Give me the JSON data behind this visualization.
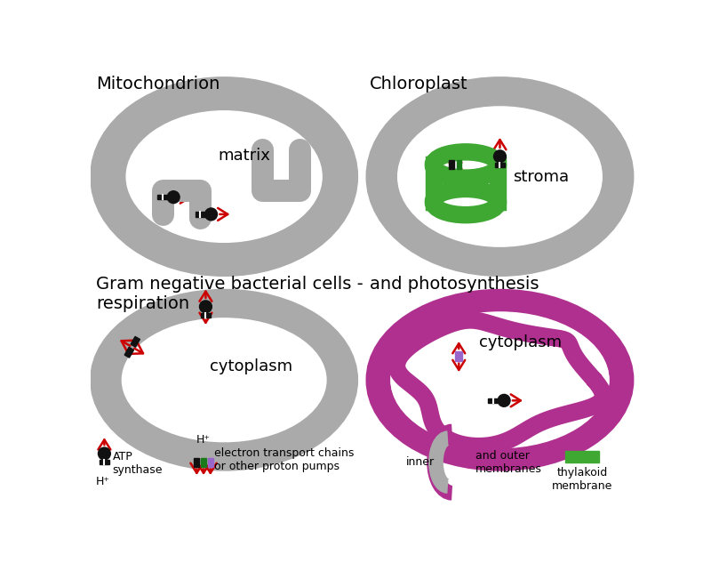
{
  "bg_color": "#ffffff",
  "gray_color": "#aaaaaa",
  "gray_fill": "#eeeeee",
  "green_color": "#3ea832",
  "purple_color": "#b03090",
  "black_color": "#111111",
  "red_color": "#cc0000",
  "dark_green_color": "#1a7a1a",
  "light_purple_color": "#9966cc",
  "titles": [
    "Mitochondrion",
    "Chloroplast",
    "Gram negative bacterial cells -\nrespiration",
    "and photosynthesis"
  ],
  "labels": [
    "matrix",
    "stroma",
    "cytoplasm",
    "cytoplasm"
  ],
  "legend_atp": "ATP\nsynthase",
  "legend_etc": "electron transport chains\nor other proton pumps",
  "legend_inner": "inner",
  "legend_outer": "and outer\nmembranes",
  "legend_thylakoid": "thylakoid\nmembrane",
  "h_plus": "H⁺"
}
